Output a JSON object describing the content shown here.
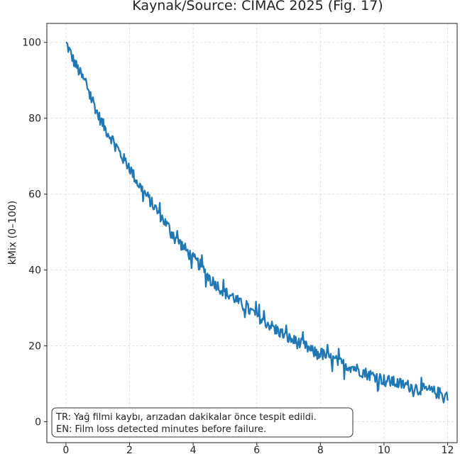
{
  "chart_data": {
    "type": "line",
    "title": "Kaynak/Source: CIMAC 2025 (Fig. 17)",
    "xlabel": "",
    "ylabel": "kMix (0–100)",
    "xlim": [
      -0.6,
      12.3
    ],
    "ylim": [
      -5.5,
      105
    ],
    "x_ticks": [
      0,
      2,
      4,
      6,
      8,
      10,
      12
    ],
    "y_ticks": [
      0,
      20,
      40,
      60,
      80,
      100
    ],
    "grid": true,
    "series": [
      {
        "name": "kMix",
        "color": "#1f77b4",
        "x": [
          0,
          0.25,
          0.5,
          0.75,
          1,
          1.25,
          1.5,
          1.75,
          2,
          2.25,
          2.5,
          2.75,
          3,
          3.25,
          3.5,
          3.75,
          4,
          4.25,
          4.5,
          4.75,
          5,
          5.25,
          5.5,
          5.75,
          6,
          6.25,
          6.5,
          6.75,
          7,
          7.25,
          7.5,
          7.75,
          8,
          8.25,
          8.5,
          8.75,
          9,
          9.25,
          9.5,
          9.75,
          10,
          10.25,
          10.5,
          10.75,
          11,
          11.25,
          11.5,
          11.75,
          12
        ],
        "values": [
          100,
          95,
          91,
          87,
          81,
          77,
          74,
          70,
          67,
          63,
          60,
          57,
          54,
          51,
          48,
          45.5,
          43,
          41,
          38,
          36,
          34,
          33,
          31,
          29.5,
          28,
          26.5,
          25,
          23.5,
          22,
          21,
          20,
          18.5,
          18,
          17,
          16,
          15,
          14.5,
          13.5,
          12.5,
          12,
          11,
          10.5,
          10,
          9.5,
          9,
          8.5,
          8,
          7.5,
          7
        ]
      }
    ]
  },
  "annotation": {
    "line_tr": "TR: Yağ filmi kaybı, arızadan dakikalar önce tespit edildi.",
    "line_en": "EN: Film loss detected minutes before failure."
  }
}
